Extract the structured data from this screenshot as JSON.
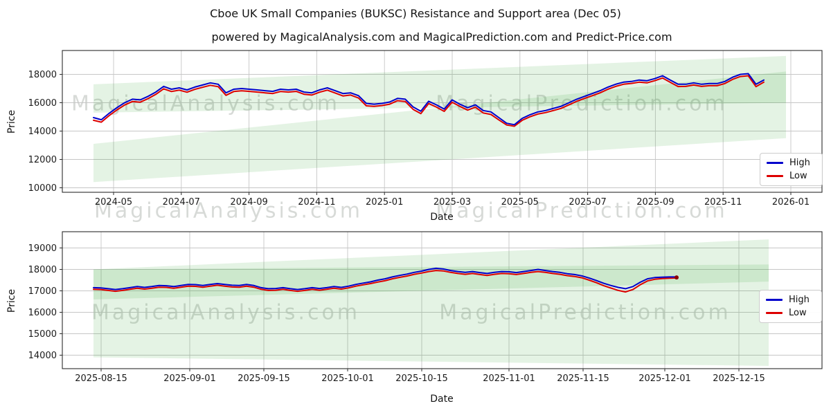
{
  "page": {
    "title": "Cboe UK Small Companies (BUKSC) Resistance and Support area (Dec 05)",
    "subtitle": "powered by MagicalAnalysis.com and MagicalPrediction.com and Predict-Price.com",
    "watermarks": [
      "MagicalAnalysis.com",
      "MagicalPrediction.com"
    ]
  },
  "chart_data": [
    {
      "name": "top",
      "type": "line",
      "xlabel": "Date",
      "ylabel": "Price",
      "x_start": "2024-04-12",
      "x_end": "2025-12-05",
      "sampling": "weekly",
      "xticks": [
        "2024-05",
        "2024-07",
        "2024-09",
        "2024-11",
        "2025-01",
        "2025-03",
        "2025-05",
        "2025-07",
        "2025-09",
        "2025-11",
        "2026-01"
      ],
      "yticks": [
        10000,
        12000,
        14000,
        16000,
        18000
      ],
      "ylim": [
        9700,
        19700
      ],
      "grid": true,
      "legend_position": "right",
      "band_color": "rgba(44,160,44,0.13)",
      "bands": [
        {
          "name": "resistance-area",
          "start_range": [
            15300,
            17300
          ],
          "end_range": [
            16000,
            19300
          ]
        },
        {
          "name": "support-area",
          "start_range": [
            10400,
            13100
          ],
          "end_range": [
            13500,
            18200
          ]
        }
      ],
      "series": [
        {
          "name": "High",
          "color": "#0000cc",
          "values": [
            14950,
            14800,
            15250,
            15650,
            16000,
            16250,
            16200,
            16450,
            16750,
            17150,
            16950,
            17050,
            16900,
            17100,
            17250,
            17400,
            17300,
            16700,
            16950,
            17000,
            16950,
            16900,
            16850,
            16800,
            16950,
            16900,
            16950,
            16750,
            16700,
            16900,
            17050,
            16850,
            16650,
            16700,
            16500,
            15950,
            15900,
            15950,
            16050,
            16300,
            16250,
            15700,
            15400,
            16100,
            15850,
            15550,
            16200,
            15900,
            15650,
            15850,
            15450,
            15350,
            14950,
            14550,
            14450,
            14900,
            15150,
            15350,
            15450,
            15600,
            15750,
            16000,
            16250,
            16450,
            16650,
            16850,
            17100,
            17300,
            17450,
            17500,
            17600,
            17550,
            17700,
            17900,
            17600,
            17300,
            17300,
            17400,
            17300,
            17350,
            17350,
            17500,
            17800,
            18000,
            18050,
            17300,
            17600
          ]
        },
        {
          "name": "Low",
          "color": "#dd0000",
          "values": [
            14760,
            14630,
            15090,
            15490,
            15840,
            16090,
            16040,
            16290,
            16590,
            16980,
            16790,
            16890,
            16740,
            16940,
            17090,
            17230,
            17130,
            16520,
            16790,
            16840,
            16800,
            16750,
            16700,
            16650,
            16790,
            16750,
            16800,
            16600,
            16540,
            16740,
            16890,
            16690,
            16480,
            16540,
            16330,
            15780,
            15740,
            15800,
            15900,
            16140,
            16090,
            15530,
            15230,
            15940,
            15690,
            15390,
            16040,
            15740,
            15480,
            15690,
            15280,
            15170,
            14790,
            14430,
            14340,
            14760,
            15010,
            15200,
            15300,
            15450,
            15600,
            15850,
            16100,
            16300,
            16500,
            16700,
            16950,
            17150,
            17300,
            17360,
            17450,
            17400,
            17550,
            17740,
            17440,
            17140,
            17150,
            17250,
            17150,
            17200,
            17200,
            17350,
            17650,
            17850,
            17900,
            17130,
            17450
          ]
        }
      ]
    },
    {
      "name": "bottom",
      "type": "line",
      "xlabel": "Date",
      "ylabel": "Price",
      "x_start": "2025-08-13",
      "x_end": "2025-12-05",
      "sampling": "daily",
      "xticks": [
        "2025-08-15",
        "2025-09-01",
        "2025-09-15",
        "2025-10-01",
        "2025-10-15",
        "2025-11-01",
        "2025-11-15",
        "2025-12-01",
        "2025-12-15"
      ],
      "yticks": [
        14000,
        15000,
        16000,
        17000,
        18000,
        19000
      ],
      "ylim": [
        13400,
        19750
      ],
      "grid": true,
      "legend_position": "right",
      "band_color": "rgba(44,160,44,0.13)",
      "end_marker": {
        "value": 17625,
        "color": "#8b0000"
      },
      "bands": [
        {
          "name": "resistance-area",
          "start_range": [
            16600,
            18000
          ],
          "end_range": [
            17430,
            19400
          ]
        },
        {
          "name": "support-area",
          "start_range": [
            13900,
            18000
          ],
          "end_range": [
            13500,
            18230
          ]
        }
      ],
      "series": [
        {
          "name": "High",
          "color": "#0000cc",
          "values": [
            17150,
            17140,
            17100,
            17060,
            17100,
            17150,
            17200,
            17160,
            17200,
            17250,
            17240,
            17200,
            17250,
            17300,
            17290,
            17250,
            17300,
            17340,
            17300,
            17260,
            17250,
            17300,
            17250,
            17150,
            17100,
            17110,
            17150,
            17100,
            17060,
            17100,
            17150,
            17110,
            17150,
            17200,
            17160,
            17220,
            17300,
            17360,
            17420,
            17500,
            17560,
            17650,
            17720,
            17780,
            17860,
            17920,
            18000,
            18050,
            18020,
            17950,
            17900,
            17860,
            17900,
            17850,
            17810,
            17860,
            17900,
            17890,
            17850,
            17900,
            17950,
            18000,
            17950,
            17900,
            17860,
            17800,
            17760,
            17700,
            17600,
            17480,
            17350,
            17250,
            17160,
            17100,
            17200,
            17400,
            17560,
            17620,
            17640,
            17650,
            17650
          ]
        },
        {
          "name": "Low",
          "color": "#dd0000",
          "values": [
            17070,
            17060,
            17020,
            16980,
            17020,
            17070,
            17120,
            17080,
            17120,
            17170,
            17160,
            17120,
            17170,
            17220,
            17210,
            17170,
            17220,
            17260,
            17220,
            17180,
            17170,
            17220,
            17170,
            17070,
            17020,
            17030,
            17070,
            17020,
            16980,
            17020,
            17070,
            17030,
            17070,
            17120,
            17080,
            17140,
            17220,
            17280,
            17340,
            17410,
            17470,
            17560,
            17630,
            17690,
            17770,
            17830,
            17900,
            17950,
            17930,
            17860,
            17810,
            17770,
            17810,
            17760,
            17720,
            17770,
            17810,
            17800,
            17760,
            17810,
            17860,
            17900,
            17860,
            17810,
            17770,
            17710,
            17670,
            17610,
            17500,
            17380,
            17240,
            17130,
            17020,
            16950,
            17060,
            17280,
            17460,
            17540,
            17570,
            17590,
            17600
          ]
        }
      ]
    }
  ]
}
